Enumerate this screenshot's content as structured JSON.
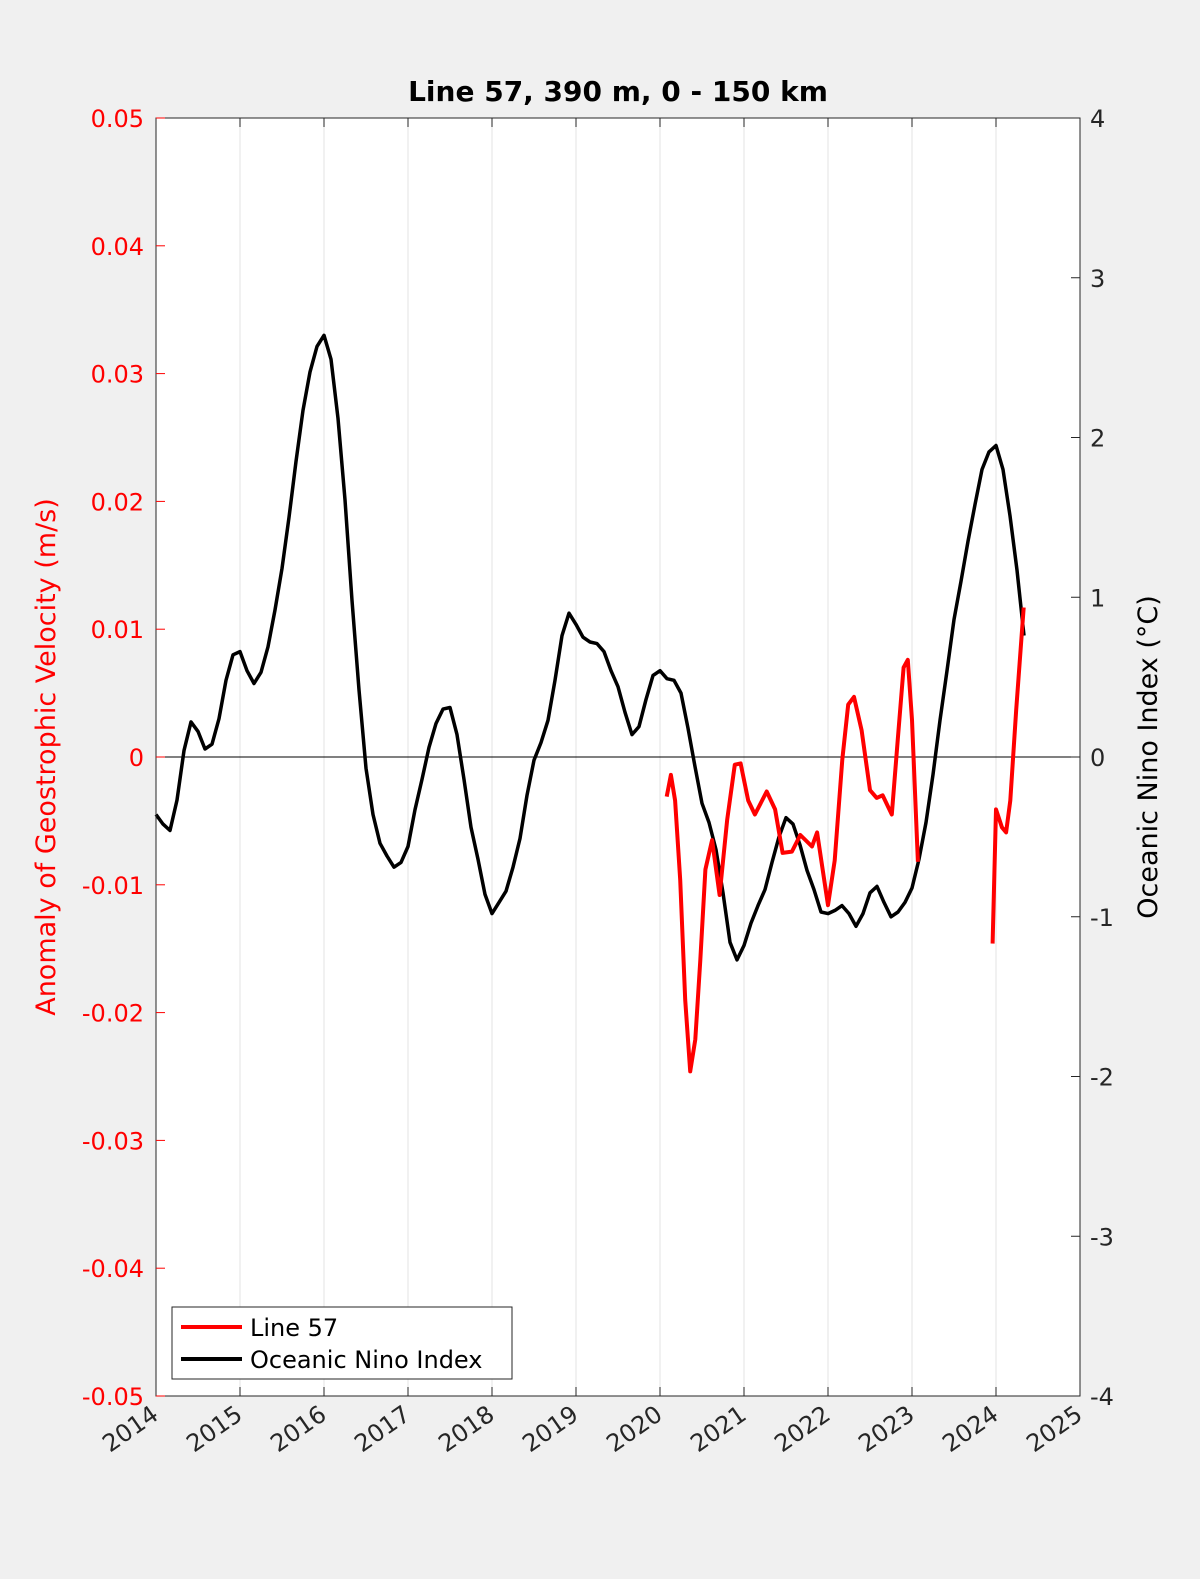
{
  "chart_data": {
    "type": "line",
    "title": "Line 57, 390 m, 0 - 150 km",
    "xlabel": "",
    "ylabel_left": "Anomaly of Geostrophic Velocity (m/s)",
    "ylabel_right": "Oceanic Nino Index (°C)",
    "xlim": [
      2014,
      2025
    ],
    "ylim_left": [
      -0.05,
      0.05
    ],
    "ylim_right": [
      -4,
      4
    ],
    "x_ticks": [
      "2014",
      "2015",
      "2016",
      "2017",
      "2018",
      "2019",
      "2020",
      "2021",
      "2022",
      "2023",
      "2024",
      "2025"
    ],
    "y_ticks_left": [
      "0.05",
      "0.04",
      "0.03",
      "0.02",
      "0.01",
      "0",
      "-0.01",
      "-0.02",
      "-0.03",
      "-0.04",
      "-0.05"
    ],
    "y_ticks_right": [
      "4",
      "3",
      "2",
      "1",
      "0",
      "-1",
      "-2",
      "-3",
      "-4"
    ],
    "grid": "vertical at x ticks",
    "legend_position": "bottom-left",
    "colors": {
      "line57": "#ff0000",
      "oni": "#000000",
      "left_axis": "#ff0000",
      "right_axis": "#000000"
    },
    "series": [
      {
        "name": "Line 57",
        "axis": "left",
        "segments": [
          [
            [
              2020.08,
              -0.0031
            ],
            [
              2020.13,
              -0.0014
            ],
            [
              2020.18,
              -0.0034
            ],
            [
              2020.24,
              -0.0096
            ],
            [
              2020.3,
              -0.019
            ],
            [
              2020.36,
              -0.0246
            ],
            [
              2020.42,
              -0.0221
            ],
            [
              2020.48,
              -0.0159
            ],
            [
              2020.54,
              -0.0088
            ],
            [
              2020.62,
              -0.0065
            ],
            [
              2020.71,
              -0.0108
            ],
            [
              2020.8,
              -0.0049
            ],
            [
              2020.89,
              -0.0006
            ],
            [
              2020.96,
              -0.0005
            ],
            [
              2021.05,
              -0.0034
            ],
            [
              2021.13,
              -0.0045
            ],
            [
              2021.27,
              -0.0027
            ],
            [
              2021.37,
              -0.0041
            ],
            [
              2021.46,
              -0.0075
            ],
            [
              2021.57,
              -0.0074
            ],
            [
              2021.67,
              -0.0061
            ],
            [
              2021.81,
              -0.007
            ],
            [
              2021.87,
              -0.0059
            ],
            [
              2022.0,
              -0.0116
            ],
            [
              2022.08,
              -0.0081
            ],
            [
              2022.17,
              -0.0002
            ],
            [
              2022.24,
              0.0041
            ],
            [
              2022.31,
              0.0047
            ],
            [
              2022.4,
              0.0021
            ],
            [
              2022.5,
              -0.0026
            ],
            [
              2022.58,
              -0.0032
            ],
            [
              2022.65,
              -0.003
            ],
            [
              2022.76,
              -0.0045
            ],
            [
              2022.83,
              0.0013
            ],
            [
              2022.9,
              0.007
            ],
            [
              2022.95,
              0.0076
            ],
            [
              2023.0,
              0.0029
            ],
            [
              2023.07,
              -0.0082
            ]
          ],
          [
            [
              2023.96,
              -0.0146
            ],
            [
              2024.0,
              -0.0041
            ],
            [
              2024.07,
              -0.0055
            ],
            [
              2024.12,
              -0.0059
            ],
            [
              2024.17,
              -0.0034
            ],
            [
              2024.24,
              0.0037
            ],
            [
              2024.33,
              0.0117
            ]
          ]
        ]
      },
      {
        "name": "Oceanic Nino Index",
        "axis": "right",
        "x_start": 2014.0,
        "x_step": 0.08333,
        "values": [
          -0.36,
          -0.42,
          -0.46,
          -0.27,
          0.04,
          0.22,
          0.16,
          0.05,
          0.08,
          0.24,
          0.48,
          0.64,
          0.66,
          0.54,
          0.46,
          0.53,
          0.69,
          0.92,
          1.18,
          1.5,
          1.85,
          2.17,
          2.41,
          2.57,
          2.64,
          2.49,
          2.12,
          1.61,
          0.98,
          0.42,
          -0.07,
          -0.36,
          -0.54,
          -0.62,
          -0.69,
          -0.66,
          -0.56,
          -0.33,
          -0.14,
          0.06,
          0.21,
          0.3,
          0.31,
          0.14,
          -0.14,
          -0.44,
          -0.64,
          -0.86,
          -0.98,
          -0.91,
          -0.84,
          -0.69,
          -0.51,
          -0.24,
          -0.02,
          0.09,
          0.23,
          0.48,
          0.76,
          0.9,
          0.83,
          0.75,
          0.72,
          0.71,
          0.66,
          0.54,
          0.44,
          0.28,
          0.14,
          0.19,
          0.36,
          0.51,
          0.54,
          0.49,
          0.48,
          0.4,
          0.18,
          -0.06,
          -0.29,
          -0.41,
          -0.58,
          -0.85,
          -1.16,
          -1.27,
          -1.18,
          -1.04,
          -0.93,
          -0.83,
          -0.66,
          -0.5,
          -0.38,
          -0.42,
          -0.55,
          -0.71,
          -0.83,
          -0.97,
          -0.98,
          -0.96,
          -0.93,
          -0.98,
          -1.06,
          -0.98,
          -0.85,
          -0.81,
          -0.91,
          -1.0,
          -0.97,
          -0.91,
          -0.82,
          -0.64,
          -0.41,
          -0.11,
          0.23,
          0.54,
          0.86,
          1.1,
          1.35,
          1.58,
          1.8,
          1.91,
          1.95,
          1.8,
          1.51,
          1.17,
          0.76
        ]
      }
    ]
  }
}
